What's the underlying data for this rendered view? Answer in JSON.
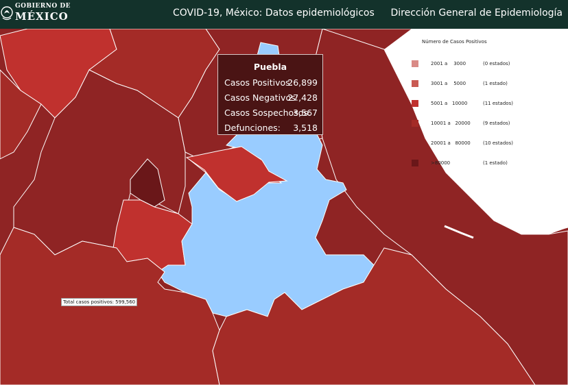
{
  "header": {
    "logo_line1": "GOBIERNO DE",
    "logo_line2": "MÉXICO",
    "app_title": "COVID-19, México: Datos epidemiológicos",
    "org_title": "Dirección General de Epidemiología"
  },
  "colors": {
    "header_bg": "#13322b",
    "hover_state": "#99ccff",
    "range_3001_5000": "#c95a53",
    "range_5001_10000": "#c0312e",
    "range_10001_20000": "#a42b27",
    "range_20001_80000": "#8f2424",
    "range_over_80000": "#6a1719"
  },
  "legend": {
    "title": "Número de Casos Positivos",
    "items": [
      {
        "range": "2001 a    3000",
        "count": "(0 estados)",
        "color": "#d98a86"
      },
      {
        "range": "3001 a    5000",
        "count": "(1 estado)",
        "color": "#c95a53"
      },
      {
        "range": "5001 a   10000",
        "count": "(11 estados)",
        "color": "#c0312e"
      },
      {
        "range": "10001 a   20000",
        "count": "(9 estados)",
        "color": "#a42b27"
      },
      {
        "range": "20001 a   80000",
        "count": "(10 estados)",
        "color": "#8f2424"
      },
      {
        "range": ">80000",
        "count": "(1 estado)",
        "color": "#6a1719"
      }
    ]
  },
  "total": {
    "label": "Total casos positivos: 599,560"
  },
  "tooltip": {
    "state": "Puebla",
    "rows": [
      {
        "label": "Casos Positivos:",
        "value": "26,899"
      },
      {
        "label": "Casos Negativos:",
        "value": "27,428"
      },
      {
        "label": "Casos Sospechosos:",
        "value": "3,567"
      },
      {
        "label": "Defunciones:",
        "value": "3,518"
      }
    ]
  }
}
